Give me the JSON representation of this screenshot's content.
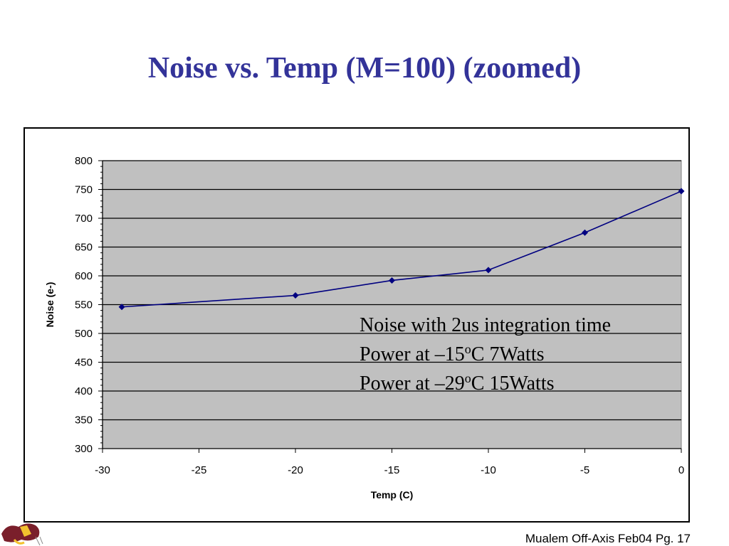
{
  "slide": {
    "title": "Noise vs. Temp (M=100) (zoomed)",
    "footer": "Mualem Off-Axis Feb04 Pg. 17"
  },
  "annotation": {
    "line1": "Noise with 2us integration time",
    "line2_pre": "Power at –15",
    "line2_sup": "o",
    "line2_post": "C 7Watts",
    "line3_pre": "Power at –29",
    "line3_sup": "o",
    "line3_post": "C 15Watts"
  },
  "chart_data": {
    "type": "line",
    "title": "",
    "xlabel": "Temp (C)",
    "ylabel": "Noise (e-)",
    "xlim": [
      -30,
      0
    ],
    "ylim": [
      300,
      800
    ],
    "xticks": [
      -30,
      -25,
      -20,
      -15,
      -10,
      -5,
      0
    ],
    "yticks": [
      300,
      350,
      400,
      450,
      500,
      550,
      600,
      650,
      700,
      750,
      800
    ],
    "grid": "horizontal",
    "legend": "none",
    "colors": {
      "plot_bg": "#c0c0c0",
      "line": "#000080",
      "title": "#333399"
    },
    "series": [
      {
        "x": [
          -29,
          -20,
          -15,
          -10,
          -5,
          0
        ],
        "y": [
          546,
          566,
          592,
          610,
          675,
          747
        ]
      }
    ]
  }
}
